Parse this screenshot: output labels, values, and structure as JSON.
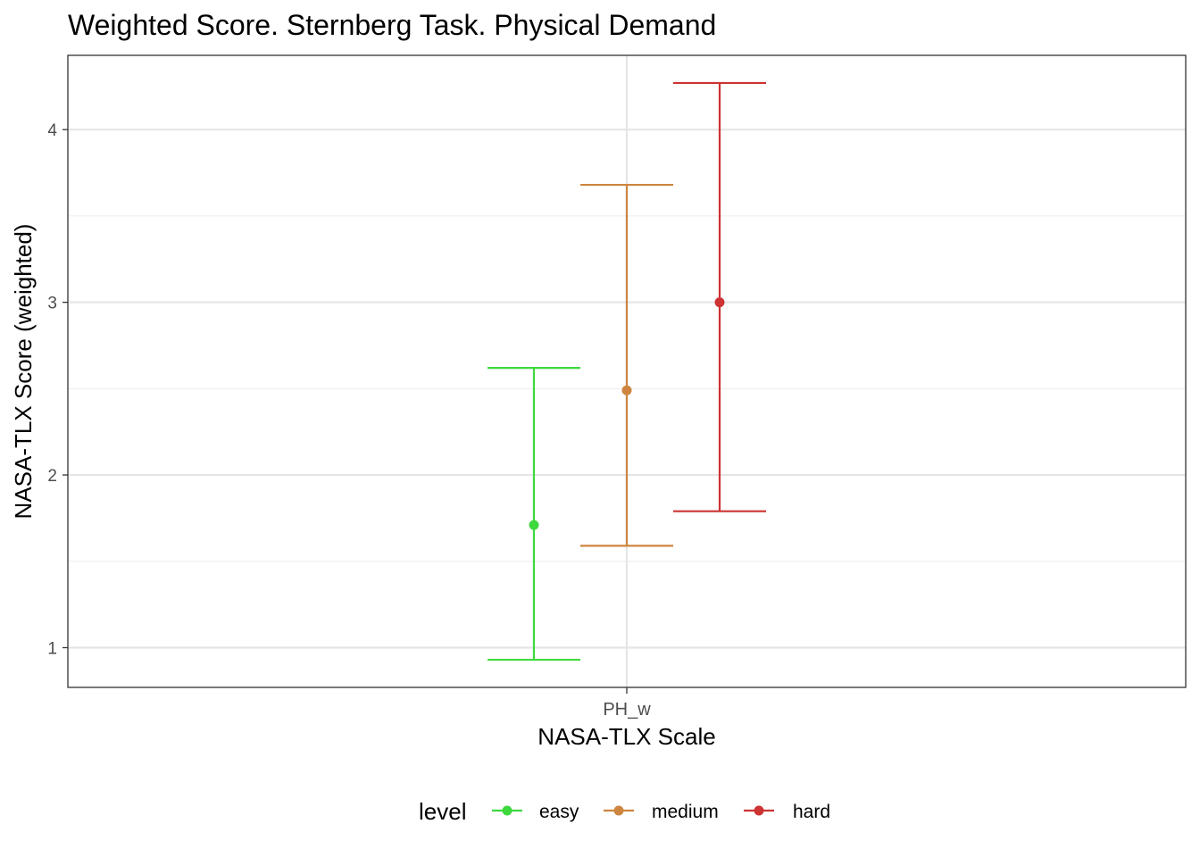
{
  "chart_data": {
    "type": "errorbar",
    "title": "Weighted Score. Sternberg Task. Physical Demand",
    "xlabel": "NASA-TLX Scale",
    "ylabel": "NASA-TLX Score (weighted)",
    "categories": [
      "PH_w"
    ],
    "y_ticks": [
      "1",
      "2",
      "3",
      "4"
    ],
    "ylim": [
      0.77,
      4.43
    ],
    "grid": true,
    "legend": {
      "title": "level",
      "position": "bottom",
      "entries": [
        "easy",
        "medium",
        "hard"
      ]
    },
    "series": [
      {
        "name": "easy",
        "color": "#3ED83E",
        "category": "PH_w",
        "mean": 1.71,
        "lower": 0.93,
        "upper": 2.62
      },
      {
        "name": "medium",
        "color": "#CD853F",
        "category": "PH_w",
        "mean": 2.49,
        "lower": 1.59,
        "upper": 3.68
      },
      {
        "name": "hard",
        "color": "#CD3333",
        "category": "PH_w",
        "mean": 3.0,
        "lower": 1.79,
        "upper": 4.27
      }
    ]
  }
}
